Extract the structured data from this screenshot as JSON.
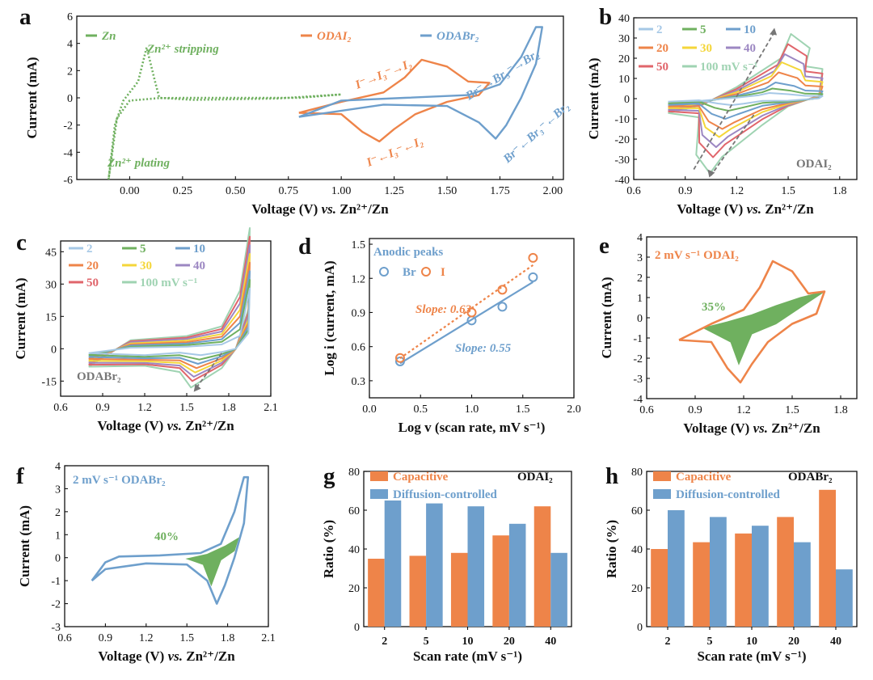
{
  "colors": {
    "orange": "#EE8449",
    "blue": "#6E9FCC",
    "green": "#6FB05F",
    "gray": "#777777",
    "lightgreen": "#9FD3B2",
    "red": "#E0656B",
    "purple": "#9C87C2",
    "yellow": "#F4D63A",
    "lightblue": "#A6C8E6"
  },
  "chart_data": [
    {
      "id": "a",
      "panel_label": "a",
      "type": "line",
      "xlabel": "Voltage (V) vs. Zn2+/Zn",
      "ylabel": "Current (mA)",
      "xlim": [
        -0.25,
        2.05
      ],
      "ylim": [
        -6,
        6
      ],
      "xticks": [
        "0.00",
        "0.25",
        "0.50",
        "0.75",
        "1.00",
        "1.25",
        "1.50",
        "1.75",
        "2.00"
      ],
      "yticks": [
        "-6",
        "-4",
        "-2",
        "0",
        "2",
        "4",
        "6"
      ],
      "legend": [
        "Zn",
        "ODAI2",
        "ODABr2"
      ],
      "annotations": [
        "Zn2+ stripping",
        "Zn2+ plating",
        "I-→I3-→I2",
        "I-←I3-←I2",
        "Br-→Br3-→Br2",
        "Br-←Br3-←Br2"
      ],
      "series": [
        {
          "name": "Zn",
          "dashed": true,
          "points": [
            [
              -0.1,
              -6
            ],
            [
              -0.07,
              -2
            ],
            [
              -0.03,
              -0.2
            ],
            [
              0.04,
              1.2
            ],
            [
              0.08,
              3.7
            ],
            [
              0.12,
              1.2
            ],
            [
              0.14,
              0.0
            ],
            [
              0.3,
              -0.15
            ],
            [
              0.7,
              -0.05
            ],
            [
              1.0,
              0.25
            ],
            [
              0.8,
              0.0
            ],
            [
              0.3,
              0.0
            ],
            [
              0.14,
              -0.02
            ],
            [
              0.0,
              -0.2
            ],
            [
              -0.06,
              -1.5
            ],
            [
              -0.1,
              -6
            ]
          ]
        },
        {
          "name": "ODAI2",
          "points": [
            [
              0.8,
              -1.1
            ],
            [
              1.0,
              -0.3
            ],
            [
              1.2,
              0.4
            ],
            [
              1.3,
              1.5
            ],
            [
              1.38,
              2.8
            ],
            [
              1.5,
              2.3
            ],
            [
              1.6,
              1.2
            ],
            [
              1.7,
              1.1
            ],
            [
              1.65,
              0.2
            ],
            [
              1.5,
              -0.3
            ],
            [
              1.35,
              -1.2
            ],
            [
              1.25,
              -2.3
            ],
            [
              1.18,
              -3.2
            ],
            [
              1.1,
              -2.5
            ],
            [
              1.0,
              -1.2
            ],
            [
              0.8,
              -1.1
            ]
          ]
        },
        {
          "name": "ODABr2",
          "points": [
            [
              0.8,
              -1.4
            ],
            [
              1.0,
              -0.2
            ],
            [
              1.3,
              0.0
            ],
            [
              1.6,
              0.2
            ],
            [
              1.75,
              1.0
            ],
            [
              1.85,
              3.0
            ],
            [
              1.92,
              5.2
            ],
            [
              1.95,
              5.2
            ],
            [
              1.92,
              2.5
            ],
            [
              1.85,
              0.0
            ],
            [
              1.78,
              -2.0
            ],
            [
              1.73,
              -3.0
            ],
            [
              1.65,
              -1.8
            ],
            [
              1.5,
              -0.6
            ],
            [
              1.2,
              -0.5
            ],
            [
              0.8,
              -1.4
            ]
          ]
        }
      ]
    },
    {
      "id": "b",
      "panel_label": "b",
      "type": "line",
      "xlabel": "Voltage (V) vs. Zn2+/Zn",
      "ylabel": "Current (mA)",
      "xlim": [
        0.6,
        1.9
      ],
      "ylim": [
        -40,
        40
      ],
      "xticks": [
        "0.6",
        "0.9",
        "1.2",
        "1.5",
        "1.8"
      ],
      "yticks": [
        "-40",
        "-30",
        "-20",
        "-10",
        "0",
        "10",
        "20",
        "30",
        "40"
      ],
      "legend": [
        "2",
        "5",
        "10",
        "20",
        "30",
        "40",
        "50",
        "100 mV s-1"
      ],
      "corner_text": "ODAI2",
      "scan_rates": [
        2,
        5,
        10,
        20,
        30,
        40,
        50,
        100
      ],
      "anodic_peaks_mA": [
        2.8,
        5,
        8,
        13,
        18,
        22,
        27,
        32
      ],
      "cathodic_peaks_mA": [
        -3.2,
        -6,
        -10,
        -15,
        -19,
        -24,
        -29,
        -37
      ]
    },
    {
      "id": "c",
      "panel_label": "c",
      "type": "line",
      "xlabel": "Voltage (V) vs. Zn2+/Zn",
      "ylabel": "Current (mA)",
      "xlim": [
        0.6,
        2.1
      ],
      "ylim": [
        -22,
        50
      ],
      "xticks": [
        "0.6",
        "0.9",
        "1.2",
        "1.5",
        "1.8",
        "2.1"
      ],
      "yticks": [
        "-15",
        "0",
        "15",
        "30",
        "45"
      ],
      "legend": [
        "2",
        "5",
        "10",
        "20",
        "30",
        "40",
        "50",
        "100 mV s-1"
      ],
      "corner_text": "ODABr2",
      "scan_rates": [
        2,
        5,
        10,
        20,
        30,
        40,
        50,
        100
      ],
      "cathodic_peaks_mA": [
        -3,
        -5,
        -7,
        -9,
        -11,
        -13,
        -15,
        -18
      ]
    },
    {
      "id": "d",
      "panel_label": "d",
      "type": "scatter",
      "xlabel": "Log v (scan rate, mV s-1)",
      "ylabel": "Log i (current, mA)",
      "xlim": [
        0,
        2.0
      ],
      "ylim": [
        0.15,
        1.55
      ],
      "xticks": [
        "0.0",
        "0.5",
        "1.0",
        "1.5",
        "2.0"
      ],
      "yticks": [
        "0.3",
        "0.6",
        "0.9",
        "1.2",
        "1.5"
      ],
      "legend_title": "Anodic peaks",
      "legend": [
        "Br",
        "I"
      ],
      "series": [
        {
          "name": "Br",
          "x": [
            0.3,
            1.0,
            1.3,
            1.6
          ],
          "y": [
            0.47,
            0.83,
            0.95,
            1.21
          ],
          "fit_slope": 0.55,
          "fit_label": "Slope: 0.55"
        },
        {
          "name": "I",
          "x": [
            0.3,
            1.0,
            1.3,
            1.6
          ],
          "y": [
            0.5,
            0.9,
            1.1,
            1.38
          ],
          "fit_slope": 0.63,
          "fit_label": "Slope: 0.63"
        }
      ]
    },
    {
      "id": "e",
      "panel_label": "e",
      "type": "area",
      "xlabel": "Voltage (V) vs. Zn2+/Zn",
      "ylabel": "Current (mA)",
      "xlim": [
        0.6,
        1.9
      ],
      "ylim": [
        -4,
        4
      ],
      "xticks": [
        "0.6",
        "0.9",
        "1.2",
        "1.5",
        "1.8"
      ],
      "yticks": [
        "-4",
        "-3",
        "-2",
        "-1",
        "0",
        "1",
        "2",
        "3",
        "4"
      ],
      "title_text": "2 mV s-1  ODAI2",
      "capacitive_label": "35%"
    },
    {
      "id": "f",
      "panel_label": "f",
      "type": "area",
      "xlabel": "Voltage (V) vs. Zn2+/Zn",
      "ylabel": "Current (mA)",
      "xlim": [
        0.6,
        2.1
      ],
      "ylim": [
        -3,
        4
      ],
      "xticks": [
        "0.6",
        "0.9",
        "1.2",
        "1.5",
        "1.8",
        "2.1"
      ],
      "yticks": [
        "-3",
        "-2",
        "-1",
        "0",
        "1",
        "2",
        "3",
        "4"
      ],
      "title_text": "2 mV s-1  ODABr2",
      "capacitive_label": "40%"
    },
    {
      "id": "g",
      "panel_label": "g",
      "type": "bar",
      "xlabel": "Scan rate (mV s-1)",
      "ylabel": "Ratio (%)",
      "ylim": [
        0,
        80
      ],
      "yticks": [
        "0",
        "20",
        "40",
        "60",
        "80"
      ],
      "categories": [
        "2",
        "5",
        "10",
        "20",
        "40"
      ],
      "corner_text": "ODAI2",
      "series": [
        {
          "name": "Capacitive",
          "values": [
            35,
            36.5,
            38,
            47,
            62
          ]
        },
        {
          "name": "Diffusion-controlled",
          "values": [
            65,
            63.5,
            62,
            53,
            38
          ]
        }
      ]
    },
    {
      "id": "h",
      "panel_label": "h",
      "type": "bar",
      "xlabel": "Scan rate (mV s-1)",
      "ylabel": "Ratio (%)",
      "ylim": [
        0,
        80
      ],
      "yticks": [
        "0",
        "20",
        "40",
        "60",
        "80"
      ],
      "categories": [
        "2",
        "5",
        "10",
        "20",
        "40"
      ],
      "corner_text": "ODABr2",
      "series": [
        {
          "name": "Capacitive",
          "values": [
            40,
            43.5,
            48,
            56.5,
            70.5
          ]
        },
        {
          "name": "Diffusion-controlled",
          "values": [
            60,
            56.5,
            52,
            43.5,
            29.5
          ]
        }
      ]
    }
  ]
}
